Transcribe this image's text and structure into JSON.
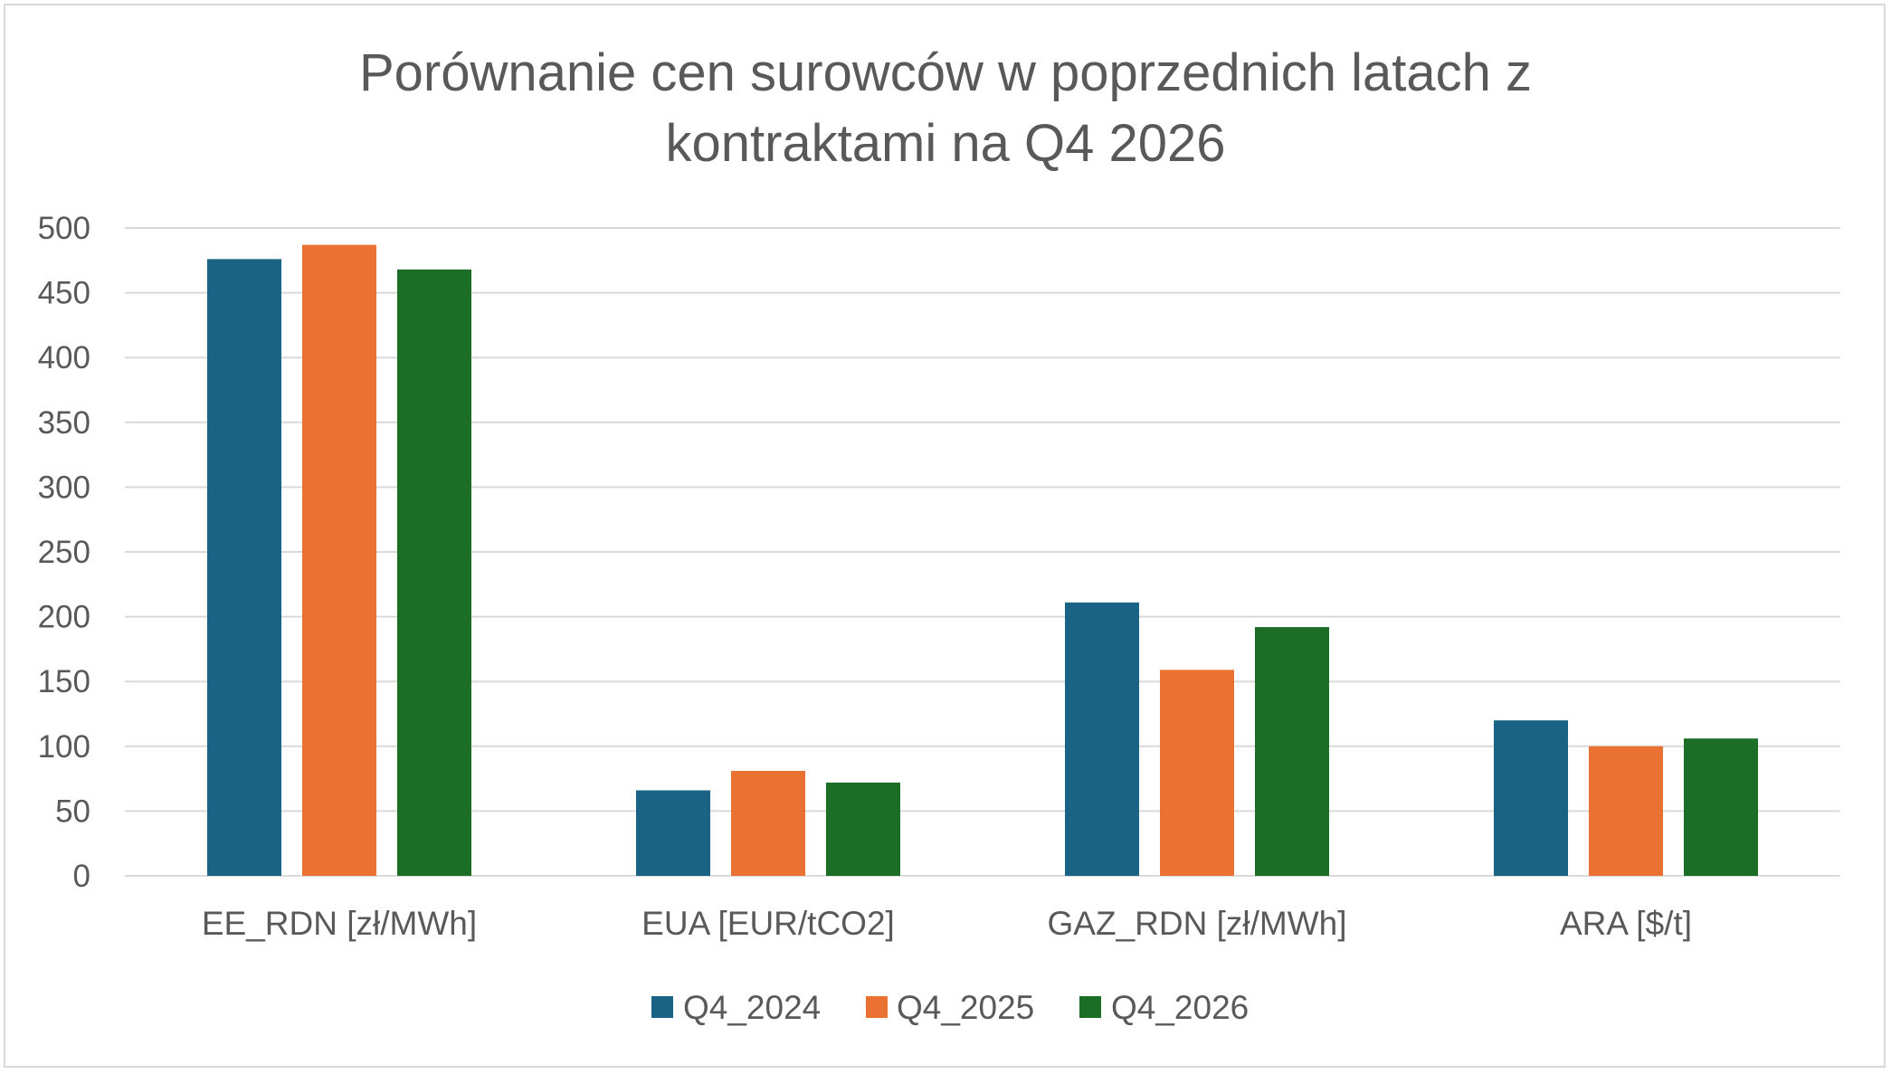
{
  "chart_data": {
    "type": "bar",
    "title": "Porównanie cen surowców w poprzednich latach z\nkontraktami na Q4 2026",
    "categories": [
      "EE_RDN [zł/MWh]",
      "EUA [EUR/tCO2]",
      "GAZ_RDN [zł/MWh]",
      "ARA [$/t]"
    ],
    "series": [
      {
        "name": "Q4_2024",
        "color": "#1a6385",
        "values": [
          476,
          66,
          211,
          120
        ]
      },
      {
        "name": "Q4_2025",
        "color": "#e97132",
        "values": [
          487,
          81,
          159,
          100
        ]
      },
      {
        "name": "Q4_2026",
        "color": "#1c6e26",
        "values": [
          468,
          72,
          192,
          106
        ]
      }
    ],
    "yticks": [
      "0",
      "50",
      "100",
      "150",
      "200",
      "250",
      "300",
      "350",
      "400",
      "450",
      "500"
    ],
    "ylim": [
      0,
      500
    ],
    "grid": true,
    "legend": "bottom"
  }
}
